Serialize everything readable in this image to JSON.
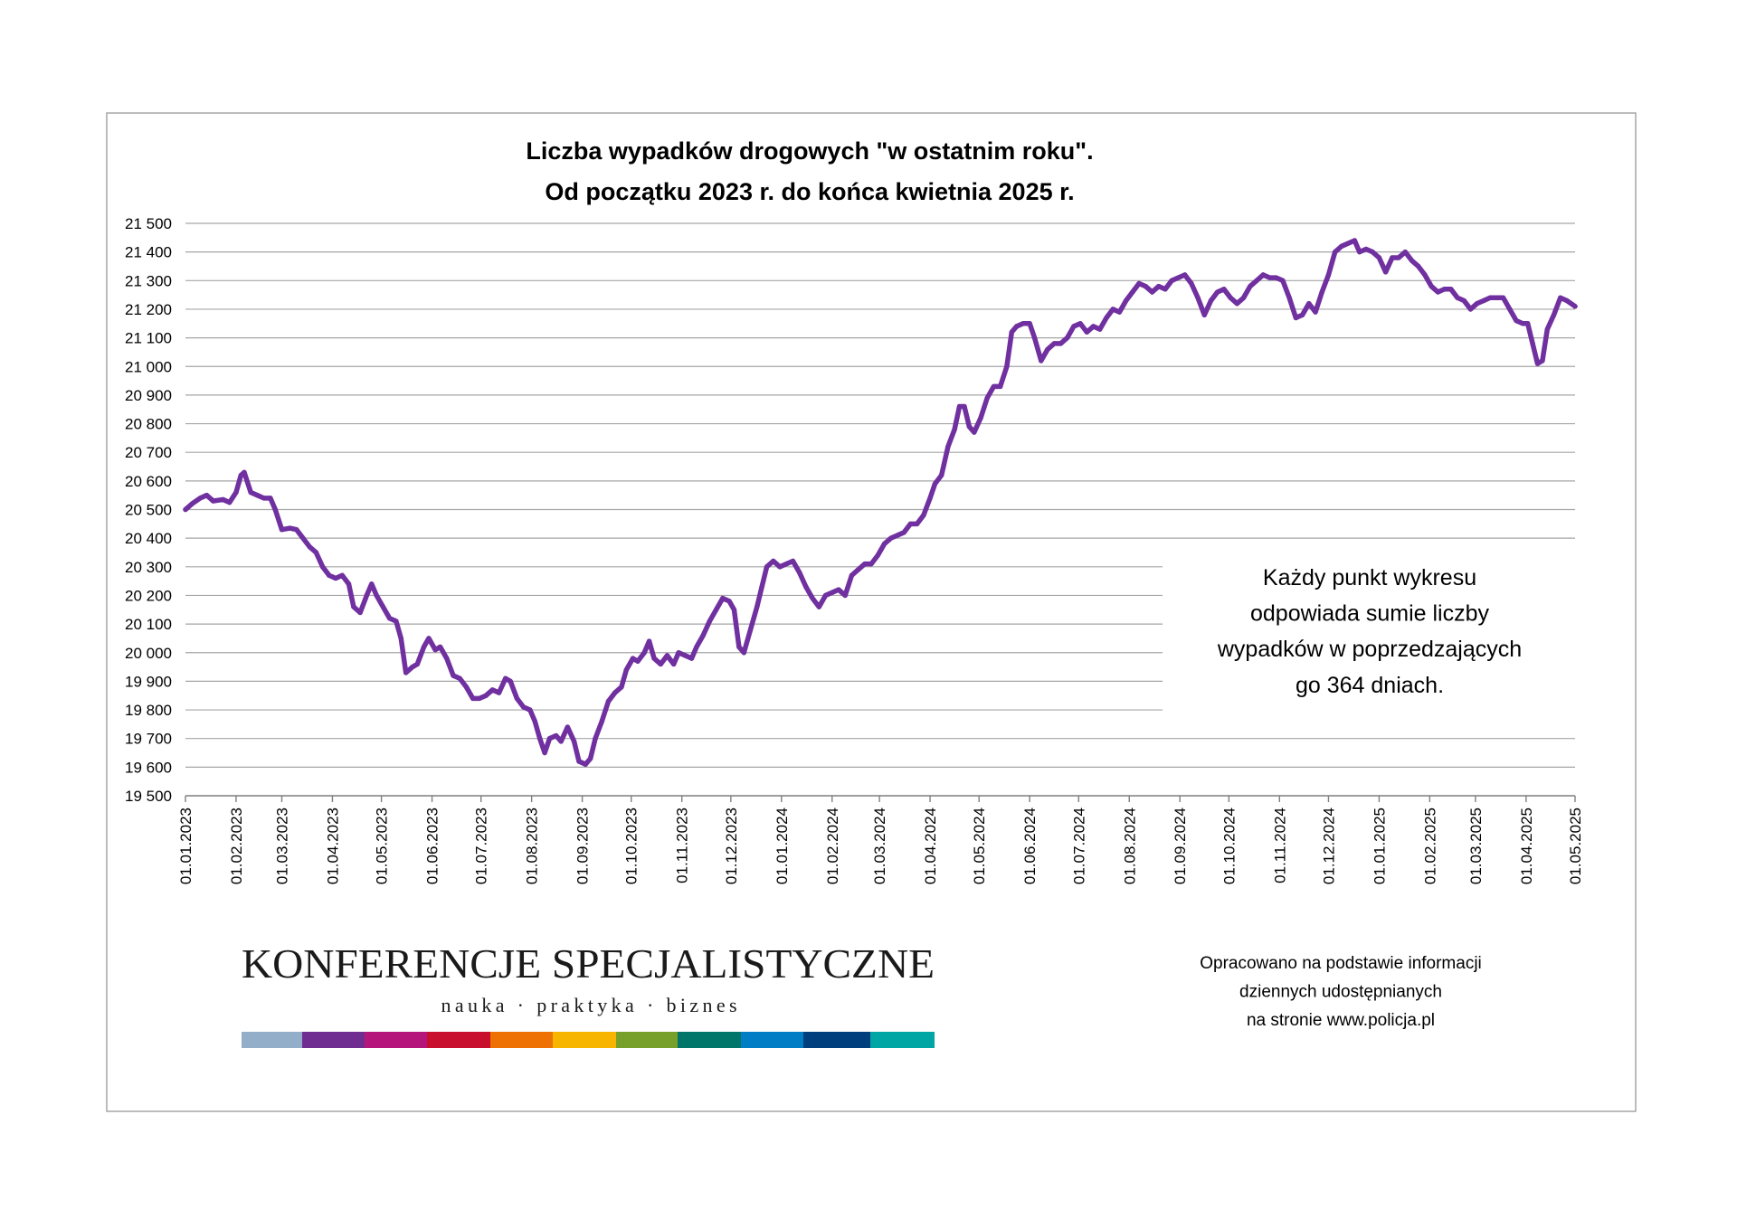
{
  "chart_data": {
    "type": "line",
    "title": "Liczba wypadków drogowych \"w ostatnim roku\".",
    "subtitle": "Od początku 2023 r. do końca kwietnia 2025 r.",
    "xlabel": "",
    "ylabel": "",
    "ylim": [
      19500,
      21500
    ],
    "xlim": [
      "01.01.2023",
      "01.05.2025"
    ],
    "grid": true,
    "legend": "none",
    "line_color": "#7030A0",
    "y_ticks": [
      "21 500",
      "21 400",
      "21 300",
      "21 200",
      "21 100",
      "21 000",
      "20 900",
      "20 800",
      "20 700",
      "20 600",
      "20 500",
      "20 400",
      "20 300",
      "20 200",
      "20 100",
      "20 000",
      "19 900",
      "19 800",
      "19 700",
      "19 600",
      "19 500"
    ],
    "x_ticks": [
      "01.01.2023",
      "01.02.2023",
      "01.03.2023",
      "01.04.2023",
      "01.05.2023",
      "01.06.2023",
      "01.07.2023",
      "01.08.2023",
      "01.09.2023",
      "01.10.2023",
      "01.11.2023",
      "01.12.2023",
      "01.01.2024",
      "01.02.2024",
      "01.03.2024",
      "01.04.2024",
      "01.05.2024",
      "01.06.2024",
      "01.07.2024",
      "01.08.2024",
      "01.09.2024",
      "01.10.2024",
      "01.11.2024",
      "01.12.2024",
      "01.01.2025",
      "01.02.2025",
      "01.03.2025",
      "01.04.2025",
      "01.05.2025"
    ],
    "x": [
      "01.01.2023",
      "05.01.2023",
      "10.01.2023",
      "14.01.2023",
      "18.01.2023",
      "24.01.2023",
      "28.01.2023",
      "01.02.2023",
      "04.02.2023",
      "06.02.2023",
      "10.02.2023",
      "14.02.2023",
      "18.02.2023",
      "22.02.2023",
      "25.02.2023",
      "01.03.2023",
      "06.03.2023",
      "10.03.2023",
      "14.03.2023",
      "18.03.2023",
      "22.03.2023",
      "26.03.2023",
      "30.03.2023",
      "03.04.2023",
      "07.04.2023",
      "11.04.2023",
      "14.04.2023",
      "18.04.2023",
      "22.04.2023",
      "25.04.2023",
      "28.04.2023",
      "02.05.2023",
      "06.05.2023",
      "10.05.2023",
      "13.05.2023",
      "16.05.2023",
      "20.05.2023",
      "23.05.2023",
      "27.05.2023",
      "30.05.2023",
      "03.06.2023",
      "06.06.2023",
      "10.06.2023",
      "14.06.2023",
      "18.06.2023",
      "22.06.2023",
      "26.06.2023",
      "30.06.2023",
      "04.07.2023",
      "08.07.2023",
      "12.07.2023",
      "16.07.2023",
      "19.07.2023",
      "23.07.2023",
      "27.07.2023",
      "31.07.2023",
      "03.08.2023",
      "06.08.2023",
      "09.08.2023",
      "12.08.2023",
      "16.08.2023",
      "19.08.2023",
      "23.08.2023",
      "27.08.2023",
      "30.08.2023",
      "03.09.2023",
      "06.09.2023",
      "09.09.2023",
      "13.09.2023",
      "17.09.2023",
      "21.09.2023",
      "25.09.2023",
      "28.09.2023",
      "02.10.2023",
      "05.10.2023",
      "09.10.2023",
      "12.10.2023",
      "15.10.2023",
      "19.10.2023",
      "23.10.2023",
      "27.10.2023",
      "30.10.2023",
      "03.11.2023",
      "07.11.2023",
      "10.11.2023",
      "14.11.2023",
      "18.11.2023",
      "22.11.2023",
      "26.11.2023",
      "30.11.2023",
      "03.12.2023",
      "06.12.2023",
      "09.12.2023",
      "13.12.2023",
      "17.12.2023",
      "20.12.2023",
      "23.12.2023",
      "27.12.2023",
      "31.12.2023",
      "04.01.2024",
      "08.01.2024",
      "12.01.2024",
      "16.01.2024",
      "20.01.2024",
      "24.01.2024",
      "28.01.2024",
      "01.02.2024",
      "05.02.2024",
      "09.02.2024",
      "13.02.2024",
      "17.02.2024",
      "21.02.2024",
      "25.02.2024",
      "29.02.2024",
      "04.03.2024",
      "08.03.2024",
      "12.03.2024",
      "16.03.2024",
      "20.03.2024",
      "24.03.2024",
      "28.03.2024",
      "01.04.2024",
      "04.04.2024",
      "08.04.2024",
      "12.04.2024",
      "16.04.2024",
      "19.04.2024",
      "22.04.2024",
      "25.04.2024",
      "28.04.2024",
      "02.05.2024",
      "06.05.2024",
      "10.05.2024",
      "14.05.2024",
      "18.05.2024",
      "21.05.2024",
      "24.05.2024",
      "28.05.2024",
      "01.06.2024",
      "04.06.2024",
      "08.06.2024",
      "12.06.2024",
      "16.06.2024",
      "20.06.2024",
      "24.06.2024",
      "28.06.2024",
      "02.07.2024",
      "06.07.2024",
      "10.07.2024",
      "14.07.2024",
      "18.07.2024",
      "22.07.2024",
      "26.07.2024",
      "30.07.2024",
      "03.08.2024",
      "07.08.2024",
      "11.08.2024",
      "15.08.2024",
      "19.08.2024",
      "23.08.2024",
      "27.08.2024",
      "31.08.2024",
      "04.09.2024",
      "08.09.2024",
      "12.09.2024",
      "16.09.2024",
      "20.09.2024",
      "24.09.2024",
      "28.09.2024",
      "02.10.2024",
      "06.10.2024",
      "10.10.2024",
      "14.10.2024",
      "18.10.2024",
      "22.10.2024",
      "26.10.2024",
      "30.10.2024",
      "03.11.2024",
      "07.11.2024",
      "11.11.2024",
      "15.11.2024",
      "19.11.2024",
      "23.11.2024",
      "27.11.2024",
      "01.12.2024",
      "05.12.2024",
      "09.12.2024",
      "13.12.2024",
      "17.12.2024",
      "20.12.2024",
      "24.12.2024",
      "28.12.2024",
      "01.01.2025",
      "05.01.2025",
      "09.01.2025",
      "13.01.2025",
      "17.01.2025",
      "21.01.2025",
      "25.01.2025",
      "29.01.2025",
      "02.02.2025",
      "06.02.2025",
      "10.02.2025",
      "14.02.2025",
      "18.02.2025",
      "22.02.2025",
      "26.02.2025",
      "02.03.2025",
      "06.03.2025",
      "10.03.2025",
      "14.03.2025",
      "18.03.2025",
      "22.03.2025",
      "26.03.2025",
      "30.03.2025",
      "02.04.2025",
      "05.04.2025",
      "08.04.2025",
      "11.04.2025",
      "14.04.2025",
      "18.04.2025",
      "22.04.2025",
      "26.04.2025",
      "01.05.2025"
    ],
    "series": [
      {
        "values": [
          20500,
          20520,
          20540,
          20550,
          20530,
          20535,
          20525,
          20560,
          20620,
          20630,
          20560,
          20550,
          20540,
          20540,
          20500,
          20430,
          20435,
          20430,
          20400,
          20370,
          20350,
          20300,
          20270,
          20260,
          20270,
          20240,
          20160,
          20140,
          20200,
          20240,
          20200,
          20160,
          20120,
          20110,
          20050,
          19930,
          19950,
          19960,
          20020,
          20050,
          20010,
          20020,
          19980,
          19920,
          19910,
          19880,
          19840,
          19840,
          19850,
          19870,
          19860,
          19910,
          19900,
          19840,
          19810,
          19800,
          19760,
          19700,
          19650,
          19700,
          19710,
          19690,
          19740,
          19690,
          19620,
          19610,
          19630,
          19700,
          19760,
          19830,
          19860,
          19880,
          19940,
          19980,
          19970,
          20000,
          20040,
          19980,
          19960,
          19990,
          19960,
          20000,
          19990,
          19980,
          20020,
          20060,
          20110,
          20150,
          20190,
          20180,
          20150,
          20020,
          20000,
          20080,
          20160,
          20230,
          20300,
          20320,
          20300,
          20310,
          20320,
          20280,
          20230,
          20190,
          20160,
          20200,
          20210,
          20220,
          20200,
          20270,
          20290,
          20310,
          20310,
          20340,
          20380,
          20400,
          20410,
          20420,
          20450,
          20450,
          20480,
          20540,
          20590,
          20620,
          20720,
          20780,
          20860,
          20860,
          20790,
          20770,
          20820,
          20890,
          20930,
          20930,
          21000,
          21120,
          21140,
          21150,
          21150,
          21100,
          21020,
          21060,
          21080,
          21080,
          21100,
          21140,
          21150,
          21120,
          21140,
          21130,
          21170,
          21200,
          21190,
          21230,
          21260,
          21290,
          21280,
          21260,
          21280,
          21270,
          21300,
          21310,
          21320,
          21290,
          21240,
          21180,
          21230,
          21260,
          21270,
          21240,
          21220,
          21240,
          21280,
          21300,
          21320,
          21310,
          21310,
          21300,
          21240,
          21170,
          21180,
          21220,
          21190,
          21260,
          21320,
          21400,
          21420,
          21430,
          21440,
          21400,
          21410,
          21400,
          21380,
          21330,
          21380,
          21380,
          21400,
          21370,
          21350,
          21320,
          21280,
          21260,
          21270,
          21270,
          21240,
          21230,
          21200,
          21220,
          21230,
          21240,
          21240,
          21240,
          21200,
          21160,
          21150,
          21150,
          21080,
          21010,
          21020,
          21130,
          21180,
          21240,
          21230,
          21210
        ]
      }
    ],
    "annotations": [
      "Każdy punkt wykresu",
      "odpowiada sumie liczby",
      "wypadków w poprzedzających",
      "go 364 dniach."
    ]
  },
  "source_note": [
    "Opracowano na podstawie informacji",
    "dziennych udostępnianych",
    "na stronie www.policja.pl"
  ],
  "logo": {
    "name": "KONFERENCJE SPECJALISTYCZNE",
    "tagline": "nauka · praktyka · biznes",
    "colors": [
      "#93AEC8",
      "#6F2C91",
      "#B5157B",
      "#C8102E",
      "#EE7203",
      "#F7B500",
      "#77A02B",
      "#00766A",
      "#007DC5",
      "#003F7D",
      "#00A6A4"
    ]
  },
  "colors": {
    "frame": "#A6A6A6",
    "gridline": "#A6A6A6",
    "axis": "#7F7F7F"
  }
}
